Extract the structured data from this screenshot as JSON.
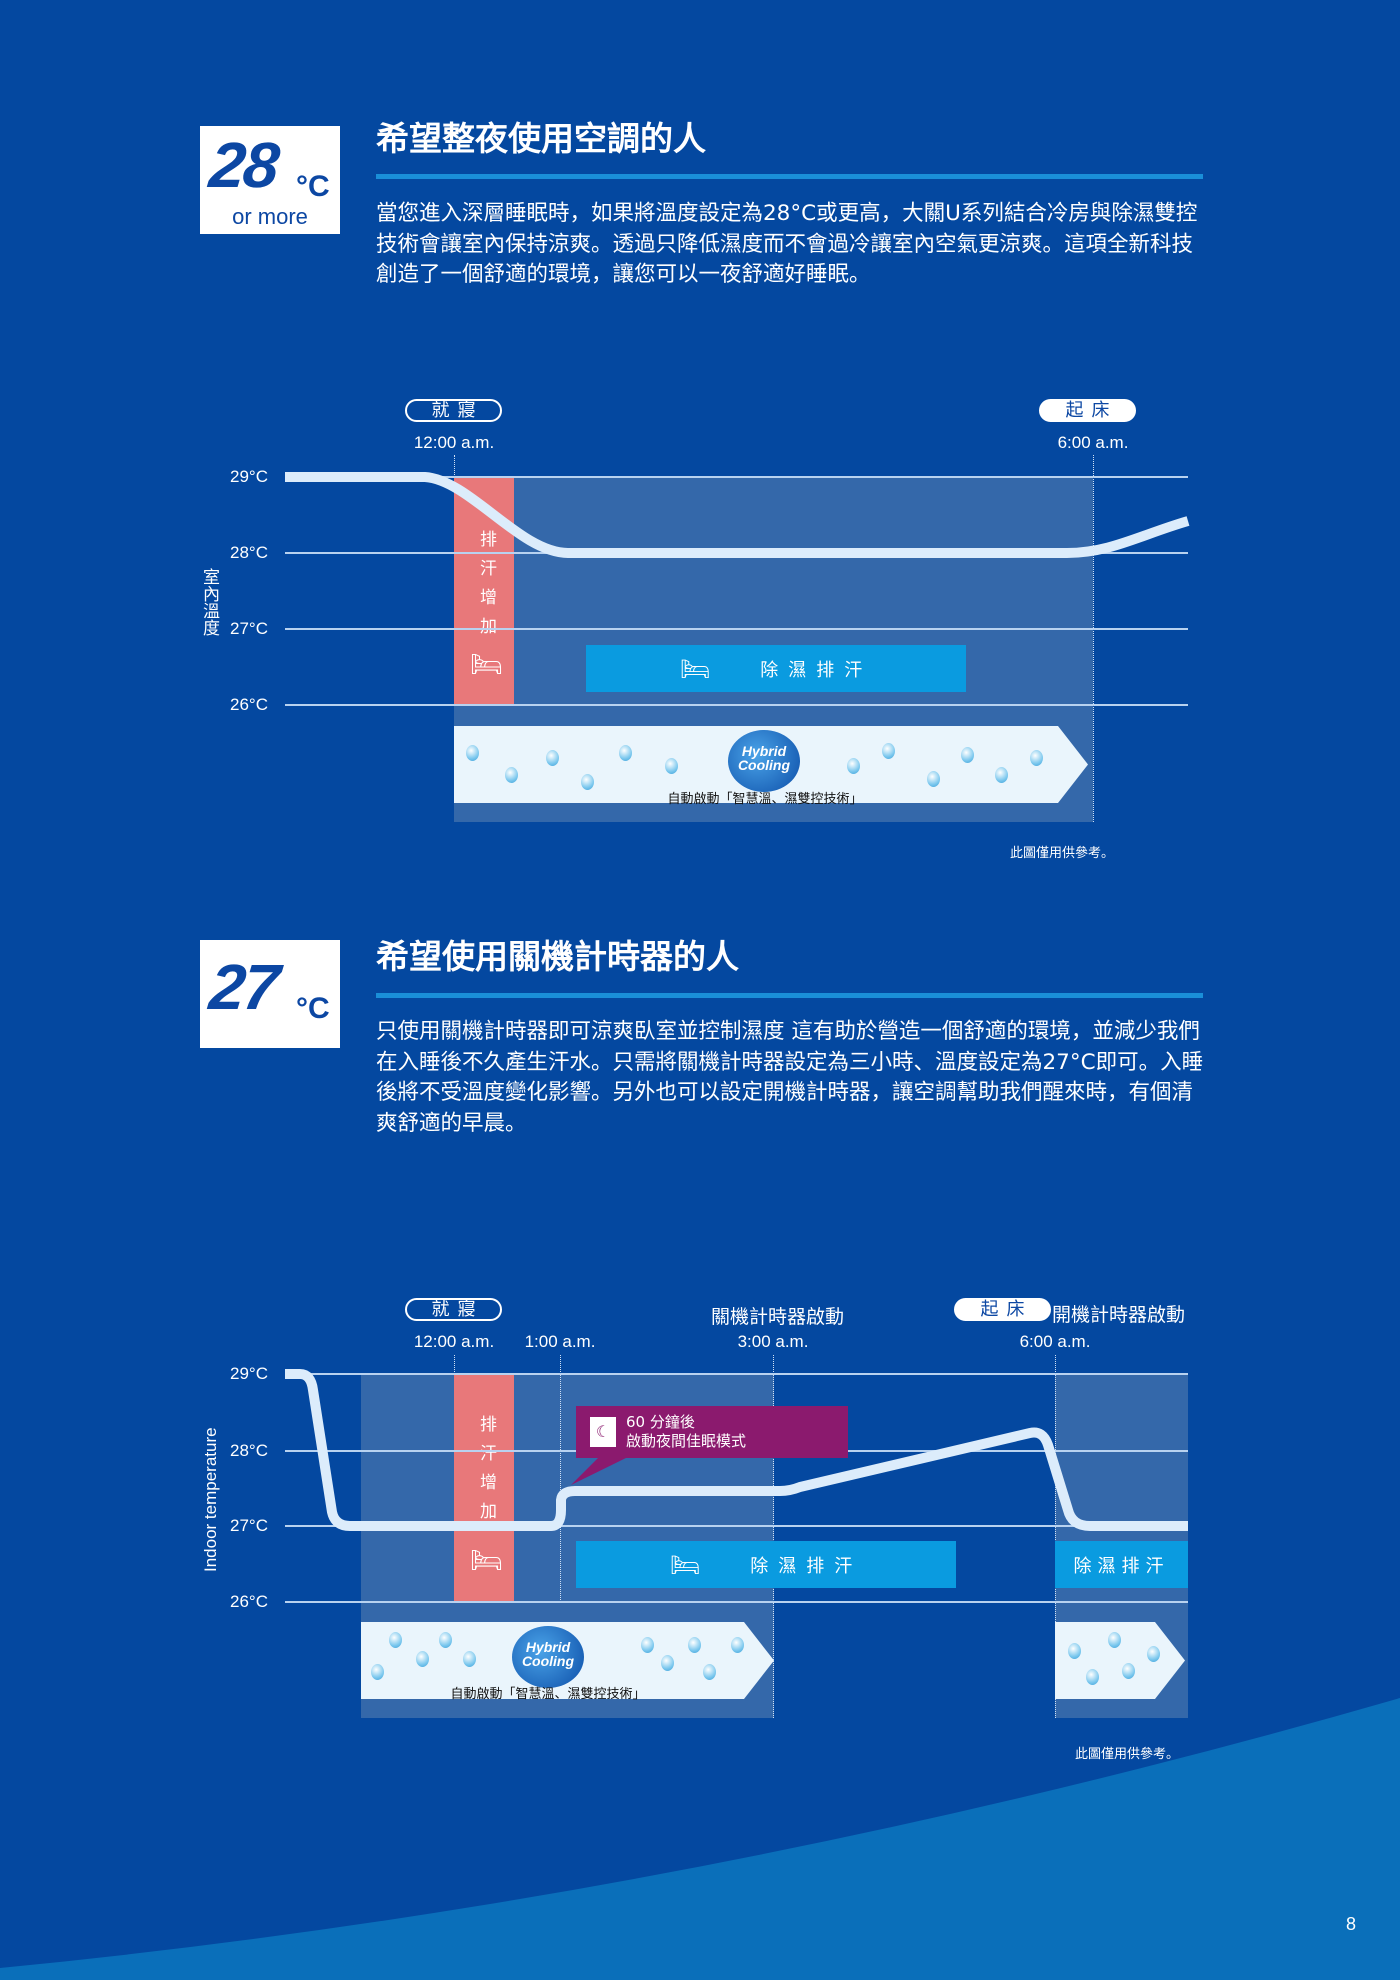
{
  "colors": {
    "background": "#0448a0",
    "accent_rule": "#1a8fd8",
    "sweat_band": "#e8787a",
    "dehumid_box": "#0a9be0",
    "callout": "#8b1a6e",
    "shade": "#3468aa"
  },
  "section1": {
    "badge": {
      "number": "28",
      "unit": "°C",
      "sub": "or more"
    },
    "title": "希望整夜使用空調的人",
    "paragraph": [
      "當您進入深層睡眠時，如果將溫度設定為28°C或更高，大關U系列結合冷房與除濕雙控",
      "技術會讓室內保持涼爽。透過只降低濕度而不會過冷讓室內空氣更涼爽。這項全新科技",
      "創造了一個舒適的環境，讓您可以一夜舒適好睡眠。"
    ],
    "chart": {
      "bedtime_label": "就寢",
      "wakeup_label": "起床",
      "times": [
        "12:00 a.m.",
        "6:00 a.m."
      ],
      "y_title": "室內溫度",
      "y_ticks": [
        "29°C",
        "28°C",
        "27°C",
        "26°C"
      ],
      "sweat_label": "排汗增加",
      "dehumid_label": "除濕排汗",
      "hybrid_logo": "Hybrid Cooling",
      "auto_label": "自動啟動「智慧溫、濕雙控技術」",
      "note": "此圖僅用供參考。"
    }
  },
  "section2": {
    "badge": {
      "number": "27",
      "unit": "°C"
    },
    "title": "希望使用關機計時器的人",
    "paragraph": [
      "只使用關機計時器即可涼爽臥室並控制濕度 這有助於營造一個舒適的環境，並減少我們",
      "在入睡後不久產生汗水。只需將關機計時器設定為三小時、溫度設定為27°C即可。入睡",
      "後將不受溫度變化影響。另外也可以設定開機計時器，讓空調幫助我們醒來時，有個清",
      "爽舒適的早晨。"
    ],
    "chart": {
      "bedtime_label": "就寢",
      "wakeup_label": "起床",
      "off_timer_label": "關機計時器啟動",
      "on_timer_label": "開機計時器啟動",
      "times": [
        "12:00 a.m.",
        "1:00 a.m.",
        "3:00 a.m.",
        "6:00 a.m."
      ],
      "y_title": "Indoor temperature",
      "y_ticks": [
        "29°C",
        "28°C",
        "27°C",
        "26°C"
      ],
      "sweat_label": "排汗增加",
      "callout": [
        "60 分鐘後",
        "啟動夜間佳眠模式"
      ],
      "dehumid_label": "除濕排汗",
      "hybrid_logo": "Hybrid Cooling",
      "auto_label": "自動啟動「智慧溫、濕雙控技術」",
      "note": "此圖僅用供參考。"
    }
  },
  "page_number": "8"
}
